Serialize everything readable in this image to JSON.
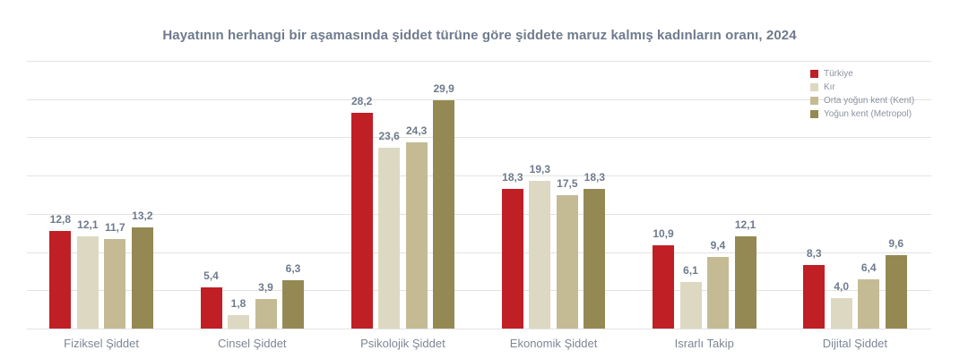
{
  "title": "Hayatının herhangi bir aşamasında şiddet türüne göre şiddete maruz kalmış kadınların oranı, 2024",
  "colors": {
    "turkiye": "#c01f26",
    "kir": "#ddd8c2",
    "kent": "#c4bb95",
    "metropol": "#958953",
    "grid": "#e3e3e3",
    "label_text": "#6e7b8c"
  },
  "legend": [
    {
      "label": "Türkiye",
      "color": "#c01f26"
    },
    {
      "label": "Kır",
      "color": "#ddd8c2"
    },
    {
      "label": "Orta yoğun kent (Kent)",
      "color": "#c4bb95"
    },
    {
      "label": "Yoğun kent (Metropol)",
      "color": "#958953"
    }
  ],
  "chart_data": {
    "type": "bar",
    "title": "Hayatının herhangi bir aşamasında şiddet türüne göre şiddete maruz kalmış kadınların oranı, 2024",
    "xlabel": "",
    "ylabel": "",
    "ylim": [
      0,
      35
    ],
    "grid": true,
    "legend_position": "top-right",
    "categories": [
      "Fiziksel Şiddet",
      "Cinsel Şiddet",
      "Psikolojik Şiddet",
      "Ekonomik Şiddet",
      "Israrlı Takip",
      "Dijital Şiddet"
    ],
    "series": [
      {
        "name": "Türkiye",
        "values": [
          12.8,
          5.4,
          28.2,
          18.3,
          10.9,
          8.3
        ],
        "labels": [
          "12,8",
          "5,4",
          "28,2",
          "18,3",
          "10,9",
          "8,3"
        ]
      },
      {
        "name": "Kır",
        "values": [
          12.1,
          1.8,
          23.6,
          19.3,
          6.1,
          4.0
        ],
        "labels": [
          "12,1",
          "1,8",
          "23,6",
          "19,3",
          "6,1",
          "4,0"
        ]
      },
      {
        "name": "Orta yoğun kent (Kent)",
        "values": [
          11.7,
          3.9,
          24.3,
          17.5,
          9.4,
          6.4
        ],
        "labels": [
          "11,7",
          "3,9",
          "24,3",
          "17,5",
          "9,4",
          "6,4"
        ]
      },
      {
        "name": "Yoğun kent (Metropol)",
        "values": [
          13.2,
          6.3,
          29.9,
          18.3,
          12.1,
          9.6
        ],
        "labels": [
          "13,2",
          "6,3",
          "29,9",
          "18,3",
          "12,1",
          "9,6"
        ]
      }
    ]
  }
}
